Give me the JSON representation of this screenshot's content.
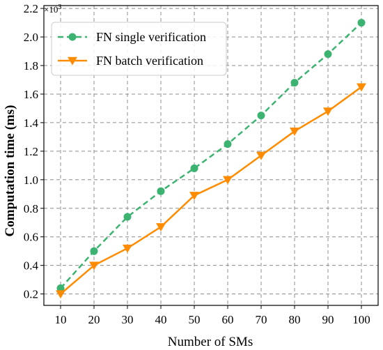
{
  "chart_data": {
    "type": "line",
    "xlabel": "Number of SMs",
    "ylabel": "Computation time (ms)",
    "y_multiplier": "×10",
    "y_multiplier_exp": "3",
    "x": [
      10,
      20,
      30,
      40,
      50,
      60,
      70,
      80,
      90,
      100
    ],
    "xlim": [
      5,
      105
    ],
    "ylim": [
      0.12,
      2.22
    ],
    "yticks": [
      0.2,
      0.4,
      0.6,
      0.8,
      1.0,
      1.2,
      1.4,
      1.6,
      1.8,
      2.0,
      2.2
    ],
    "grid": true,
    "legend_position": "top-left",
    "series": [
      {
        "name": "FN single verification",
        "color": "#3cb371",
        "line_style": "dashed",
        "marker": "circle",
        "values": [
          0.24,
          0.5,
          0.74,
          0.92,
          1.08,
          1.25,
          1.45,
          1.68,
          1.88,
          2.1
        ]
      },
      {
        "name": "FN batch verification",
        "color": "#ff8c00",
        "line_style": "solid",
        "marker": "triangle-down",
        "values": [
          0.2,
          0.4,
          0.52,
          0.67,
          0.89,
          1.0,
          1.17,
          1.34,
          1.48,
          1.65
        ]
      }
    ]
  }
}
